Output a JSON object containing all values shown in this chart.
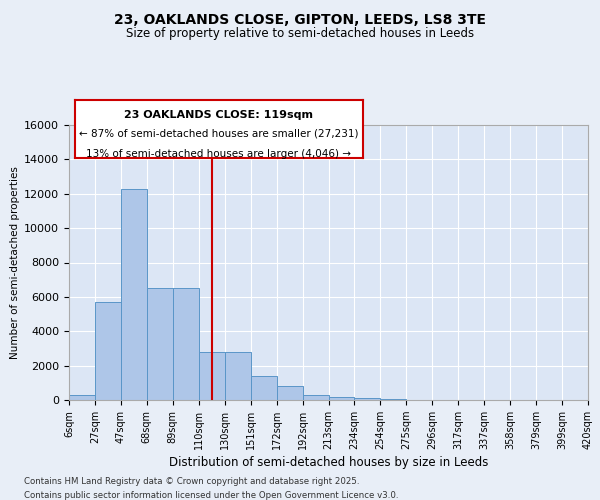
{
  "title_line1": "23, OAKLANDS CLOSE, GIPTON, LEEDS, LS8 3TE",
  "title_line2": "Size of property relative to semi-detached houses in Leeds",
  "xlabel": "Distribution of semi-detached houses by size in Leeds",
  "ylabel": "Number of semi-detached properties",
  "footer_line1": "Contains HM Land Registry data © Crown copyright and database right 2025.",
  "footer_line2": "Contains public sector information licensed under the Open Government Licence v3.0.",
  "annotation_title": "23 OAKLANDS CLOSE: 119sqm",
  "annotation_line2": "← 87% of semi-detached houses are smaller (27,231)",
  "annotation_line3": "13% of semi-detached houses are larger (4,046) →",
  "bin_labels": [
    "6sqm",
    "27sqm",
    "47sqm",
    "68sqm",
    "89sqm",
    "110sqm",
    "130sqm",
    "151sqm",
    "172sqm",
    "192sqm",
    "213sqm",
    "234sqm",
    "254sqm",
    "275sqm",
    "296sqm",
    "317sqm",
    "337sqm",
    "358sqm",
    "379sqm",
    "399sqm",
    "420sqm"
  ],
  "bar_values": [
    300,
    5700,
    12300,
    6500,
    6500,
    2800,
    2800,
    1400,
    800,
    300,
    200,
    100,
    30,
    5,
    2,
    1,
    1,
    0,
    0,
    0
  ],
  "bar_color": "#aec6e8",
  "bar_edge_color": "#5a96c8",
  "vline_color": "#cc0000",
  "vline_x": 5.5,
  "ylim": [
    0,
    16000
  ],
  "yticks": [
    0,
    2000,
    4000,
    6000,
    8000,
    10000,
    12000,
    14000,
    16000
  ],
  "background_color": "#e8eef7",
  "plot_bg_color": "#dce6f5",
  "grid_color": "#ffffff",
  "annotation_box_color": "#ffffff",
  "annotation_box_edge": "#cc0000"
}
